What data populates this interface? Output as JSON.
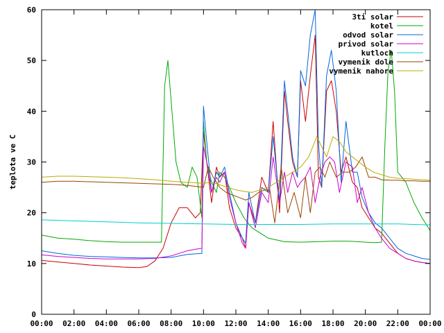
{
  "chart_data": {
    "type": "line",
    "title": "",
    "xlabel": "",
    "ylabel": "teplota ve C",
    "xlim": [
      0,
      24
    ],
    "ylim": [
      0,
      60
    ],
    "xticks": [
      {
        "v": 0,
        "label": "00:00"
      },
      {
        "v": 2,
        "label": "02:00"
      },
      {
        "v": 4,
        "label": "04:00"
      },
      {
        "v": 6,
        "label": "06:00"
      },
      {
        "v": 8,
        "label": "08:00"
      },
      {
        "v": 10,
        "label": "10:00"
      },
      {
        "v": 12,
        "label": "12:00"
      },
      {
        "v": 14,
        "label": "14:00"
      },
      {
        "v": 16,
        "label": "16:00"
      },
      {
        "v": 18,
        "label": "18:00"
      },
      {
        "v": 20,
        "label": "20:00"
      },
      {
        "v": 22,
        "label": "22:00"
      },
      {
        "v": 24,
        "label": "00:00"
      }
    ],
    "yticks": [
      {
        "v": 0,
        "label": "0"
      },
      {
        "v": 10,
        "label": "10"
      },
      {
        "v": 20,
        "label": "20"
      },
      {
        "v": 30,
        "label": "30"
      },
      {
        "v": 40,
        "label": "40"
      },
      {
        "v": 50,
        "label": "50"
      },
      {
        "v": 60,
        "label": "60"
      }
    ],
    "grid": false,
    "legend_position": "top-right",
    "series": [
      {
        "name": "3ti solar",
        "color": "#cc0000",
        "x": [
          0,
          1,
          2,
          3,
          4,
          5,
          6,
          6.5,
          7,
          7.5,
          8,
          8.5,
          9,
          9.5,
          9.8,
          10,
          10.2,
          10.5,
          10.8,
          11,
          11.3,
          11.6,
          12,
          12.4,
          12.6,
          12.8,
          13.2,
          13.6,
          14,
          14.3,
          14.7,
          15,
          15.2,
          15.5,
          15.8,
          16,
          16.3,
          16.6,
          16.9,
          17.1,
          17.3,
          17.6,
          17.9,
          18.2,
          18.5,
          18.8,
          19.2,
          19.5,
          19.8,
          20.2,
          20.6,
          21,
          21.5,
          22,
          22.5,
          23,
          23.5,
          24
        ],
        "y": [
          10.6,
          10.3,
          10.0,
          9.7,
          9.5,
          9.3,
          9.2,
          9.4,
          10.5,
          13,
          18,
          21,
          21,
          19,
          20,
          36,
          30,
          22,
          29,
          27,
          28,
          21,
          17,
          15,
          13,
          22,
          18,
          27,
          24,
          38,
          20,
          44,
          38,
          30,
          27,
          46,
          38,
          47,
          55,
          27,
          25,
          44,
          46,
          40,
          28,
          31,
          26,
          25,
          21,
          19,
          17,
          16,
          14,
          12,
          11,
          10.5,
          10.2,
          10
        ]
      },
      {
        "name": "kotel",
        "color": "#00aa00",
        "x": [
          0,
          1,
          2,
          3,
          4,
          5,
          6,
          7,
          7.4,
          7.6,
          7.8,
          8,
          8.3,
          8.6,
          9,
          9.3,
          9.6,
          9.9,
          10,
          10.2,
          10.5,
          10.8,
          11,
          11.3,
          11.6,
          12,
          12.5,
          13,
          14,
          15,
          16,
          17,
          18,
          19,
          20,
          20.6,
          21,
          21.2,
          21.4,
          21.6,
          21.8,
          22,
          22.5,
          23,
          23.5,
          24
        ],
        "y": [
          15.6,
          15.0,
          14.8,
          14.5,
          14.3,
          14.2,
          14.2,
          14.2,
          14.2,
          45,
          50,
          42,
          30,
          26,
          25,
          29,
          27,
          19,
          38,
          30,
          26,
          24,
          28,
          27,
          25,
          22,
          19,
          17,
          15,
          14.3,
          14.2,
          14.3,
          14.4,
          14.4,
          14.2,
          14.1,
          14.2,
          33,
          48,
          52,
          44,
          28,
          26,
          22,
          19,
          16.5
        ]
      },
      {
        "name": "odvod solar",
        "color": "#0066dd",
        "x": [
          0,
          1,
          2,
          3,
          4,
          5,
          6,
          7,
          8,
          8.5,
          9,
          9.5,
          9.9,
          10,
          10.2,
          10.5,
          10.8,
          11,
          11.3,
          11.6,
          12,
          12.4,
          12.6,
          12.8,
          13.2,
          13.6,
          14,
          14.3,
          14.7,
          15,
          15.2,
          15.5,
          15.8,
          16,
          16.3,
          16.6,
          16.9,
          17.1,
          17.3,
          17.6,
          17.9,
          18.2,
          18.5,
          18.8,
          19.2,
          19.5,
          19.8,
          20.2,
          20.6,
          21,
          21.5,
          22,
          22.5,
          23,
          23.5,
          24
        ],
        "y": [
          12.5,
          12.0,
          11.6,
          11.4,
          11.3,
          11.2,
          11.1,
          11.1,
          11.2,
          11.5,
          11.8,
          11.9,
          12,
          41,
          34,
          24,
          28,
          27,
          29,
          24,
          18,
          15,
          14,
          24,
          18,
          25,
          24,
          35,
          22,
          46,
          40,
          31,
          27,
          48,
          45,
          55,
          60,
          34,
          25,
          47,
          52,
          44,
          26,
          38,
          28,
          28,
          23,
          20,
          18,
          17,
          15,
          13,
          12,
          11.5,
          11.0,
          10.8
        ]
      },
      {
        "name": "privod solar",
        "color": "#cc00cc",
        "x": [
          0,
          1,
          2,
          3,
          4,
          5,
          6,
          7,
          8,
          8.5,
          9,
          9.5,
          9.9,
          10,
          10.2,
          10.5,
          10.8,
          11,
          11.3,
          11.6,
          12,
          12.4,
          12.6,
          12.8,
          13.2,
          13.6,
          14,
          14.3,
          14.7,
          15,
          15.2,
          15.5,
          15.8,
          16,
          16.3,
          16.6,
          16.9,
          17.2,
          17.5,
          17.8,
          18.1,
          18.4,
          18.8,
          19.2,
          19.5,
          19.8,
          20.2,
          20.6,
          21,
          21.5,
          22,
          22.5,
          23,
          23.5,
          24
        ],
        "y": [
          11.7,
          11.4,
          11.2,
          11.0,
          10.9,
          10.9,
          10.9,
          11.0,
          11.5,
          12.0,
          12.5,
          12.8,
          13,
          33,
          30,
          24,
          27,
          26,
          28,
          23,
          18,
          14,
          13,
          22,
          17,
          24,
          22,
          31,
          22,
          28,
          24,
          28,
          25,
          26,
          27,
          29,
          22,
          27,
          30,
          31,
          30,
          24,
          30,
          29,
          22,
          25,
          20,
          17,
          15,
          13,
          12,
          11,
          10.5,
          10.2,
          10
        ]
      },
      {
        "name": "kutloch",
        "color": "#00cccc",
        "x": [
          0,
          2,
          4,
          6,
          8,
          10,
          12,
          14,
          16,
          18,
          20,
          22,
          24
        ],
        "y": [
          18.6,
          18.4,
          18.2,
          18.0,
          17.9,
          17.8,
          17.7,
          17.7,
          17.7,
          17.8,
          17.8,
          17.8,
          17.6
        ]
      },
      {
        "name": "vymenik dole",
        "color": "#994400",
        "x": [
          0,
          1,
          2,
          3,
          4,
          5,
          6,
          7,
          8,
          9,
          9.5,
          10,
          10.3,
          10.6,
          11,
          11.4,
          11.8,
          12.2,
          12.6,
          13,
          13.4,
          13.8,
          14.1,
          14.4,
          14.8,
          15.2,
          15.6,
          16,
          16.3,
          16.6,
          16.9,
          17.2,
          17.5,
          17.8,
          18.2,
          18.6,
          19,
          19.4,
          19.8,
          20.2,
          20.6,
          21,
          21.5,
          22,
          22.5,
          23,
          23.5,
          24
        ],
        "y": [
          26,
          26.2,
          26.2,
          26.1,
          26.0,
          25.9,
          25.8,
          25.7,
          25.6,
          25.4,
          25.2,
          25,
          29,
          27,
          25,
          24,
          23.5,
          23,
          22.5,
          23,
          24,
          24.5,
          24.5,
          18,
          29,
          20,
          24,
          19,
          27,
          20,
          28,
          29,
          27,
          30,
          27,
          28,
          28,
          29,
          31,
          27,
          27,
          26.5,
          26.4,
          26.4,
          26.3,
          26.3,
          26.2,
          26.2
        ]
      },
      {
        "name": "vymenik nahore",
        "color": "#bbaa00",
        "x": [
          0,
          1,
          2,
          3,
          4,
          5,
          6,
          7,
          8,
          9,
          10,
          10.5,
          11,
          11.5,
          12,
          12.5,
          13,
          13.5,
          14,
          14.5,
          15,
          15.5,
          16,
          16.5,
          17,
          17.3,
          17.6,
          18,
          18.4,
          18.8,
          19.2,
          19.6,
          20,
          20.5,
          21,
          21.5,
          22,
          22.5,
          23,
          23.5,
          24
        ],
        "y": [
          27,
          27.2,
          27.2,
          27.1,
          27.0,
          26.9,
          26.7,
          26.5,
          26.2,
          26.0,
          25.8,
          26,
          25.5,
          25,
          24.5,
          24.2,
          24,
          24.5,
          25,
          26,
          27,
          28,
          29,
          31,
          35,
          33,
          31,
          35,
          34,
          32,
          31,
          30,
          29,
          28,
          27.5,
          27,
          26.8,
          26.7,
          26.6,
          26.5,
          26.4
        ]
      }
    ]
  }
}
